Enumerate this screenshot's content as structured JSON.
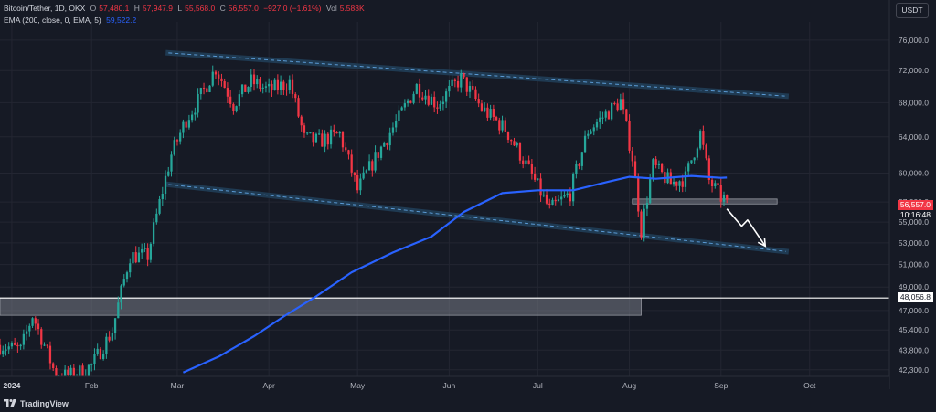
{
  "header": {
    "symbol": "Bitcoin/Tether, 1D, OKX",
    "o_label": "O",
    "o_value": "57,480.1",
    "h_label": "H",
    "h_value": "57,947.9",
    "l_label": "L",
    "l_value": "55,568.0",
    "c_label": "C",
    "c_value": "56,557.0",
    "change": "−927.0 (−1.61%)",
    "vol_label": "Vol",
    "vol_value": "5.583K",
    "ema_label": "EMA (200, close, 0, EMA, 5)",
    "ema_value": "59,522.2"
  },
  "currency_button": "USDT",
  "footer_brand": "TradingView",
  "colors": {
    "background": "#161a25",
    "up": "#26a69a",
    "down": "#f23645",
    "ema": "#2962ff",
    "channel": "#5b9bd5",
    "zone": "#787b86"
  },
  "chart_data": {
    "type": "candlestick",
    "title": "Bitcoin/Tether, 1D, OKX",
    "x_ticks": [
      "2024",
      "Feb",
      "Mar",
      "Apr",
      "May",
      "Jun",
      "Jul",
      "Aug",
      "Sep",
      "Oct"
    ],
    "x_range": [
      "2024-01-01",
      "2024-10-15"
    ],
    "y_ticks": [
      "76,000.0",
      "72,000.0",
      "68,000.0",
      "64,000.0",
      "60,000.0",
      "57,000.0",
      "55,000.0",
      "53,000.0",
      "51,000.0",
      "49,000.0",
      "47,000.0",
      "45,400.0",
      "43,800.0",
      "42,300.0"
    ],
    "y_scale": "log",
    "ylim": [
      41400,
      78500
    ],
    "last_price": "56,557.0",
    "countdown": "10:16:48",
    "horizontal_line_label": "48,056.8",
    "grid": true,
    "close_series": {
      "dates": [
        "2024-01-01",
        "2024-01-08",
        "2024-01-12",
        "2024-01-20",
        "2024-01-26",
        "2024-02-01",
        "2024-02-08",
        "2024-02-14",
        "2024-02-20",
        "2024-02-28",
        "2024-03-04",
        "2024-03-08",
        "2024-03-14",
        "2024-03-20",
        "2024-03-26",
        "2024-04-01",
        "2024-04-08",
        "2024-04-13",
        "2024-04-18",
        "2024-04-25",
        "2024-05-01",
        "2024-05-08",
        "2024-05-15",
        "2024-05-21",
        "2024-05-28",
        "2024-06-05",
        "2024-06-12",
        "2024-06-20",
        "2024-06-26",
        "2024-07-05",
        "2024-07-12",
        "2024-07-18",
        "2024-07-23",
        "2024-07-29",
        "2024-08-02",
        "2024-08-05",
        "2024-08-09",
        "2024-08-15",
        "2024-08-20",
        "2024-08-25",
        "2024-08-28",
        "2024-09-01",
        "2024-09-02",
        "2024-09-03"
      ],
      "values": [
        44200,
        43800,
        46600,
        41800,
        41900,
        42600,
        45300,
        51800,
        51800,
        62000,
        66000,
        68200,
        72300,
        67800,
        70600,
        69500,
        70500,
        63800,
        63500,
        64300,
        58200,
        62200,
        66200,
        70000,
        67800,
        71000,
        67300,
        64900,
        61500,
        56200,
        57900,
        64700,
        66300,
        68200,
        61700,
        54200,
        60800,
        58900,
        59500,
        64400,
        59200,
        57480,
        57300,
        56557
      ]
    },
    "ema": {
      "label": "EMA (200, close, 0, EMA, 5)",
      "dates": [
        "2024-03-03",
        "2024-03-15",
        "2024-03-27",
        "2024-04-06",
        "2024-04-17",
        "2024-04-29",
        "2024-05-13",
        "2024-05-26",
        "2024-06-06",
        "2024-06-19",
        "2024-07-01",
        "2024-07-13",
        "2024-07-25",
        "2024-08-01",
        "2024-08-10",
        "2024-08-22",
        "2024-09-01",
        "2024-09-03"
      ],
      "values": [
        42100,
        43300,
        44900,
        46500,
        48200,
        50300,
        52100,
        53600,
        56000,
        57900,
        58200,
        58200,
        59100,
        59600,
        59400,
        59700,
        59500,
        59522
      ]
    },
    "channel_upper": {
      "dates": [
        "2024-02-27",
        "2024-09-23"
      ],
      "values": [
        74300,
        68800
      ]
    },
    "channel_lower": {
      "dates": [
        "2024-02-27",
        "2024-09-23"
      ],
      "values": [
        58800,
        52200
      ]
    },
    "zones": [
      {
        "from": "2024-08-02",
        "to": "2024-09-20",
        "low": 56800,
        "high": 57300
      },
      {
        "from": "2024-01-01",
        "to": "2024-08-05",
        "low": 46600,
        "high": 48050
      }
    ],
    "projection_arrow": {
      "dates": [
        "2024-09-03",
        "2024-09-08",
        "2024-09-10",
        "2024-09-16"
      ],
      "values": [
        56300,
        54600,
        55200,
        52700
      ]
    }
  }
}
